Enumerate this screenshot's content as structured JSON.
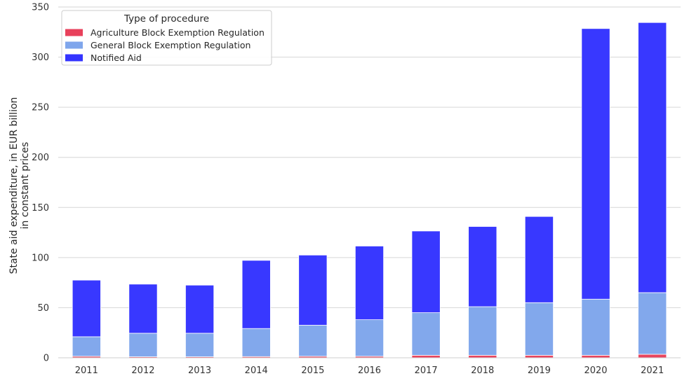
{
  "chart_data": {
    "type": "bar",
    "stacked": true,
    "categories": [
      "2011",
      "2012",
      "2013",
      "2014",
      "2015",
      "2016",
      "2017",
      "2018",
      "2019",
      "2020",
      "2021"
    ],
    "series": [
      {
        "name": "Agriculture Block Exemption Regulation",
        "color": "#e8415b",
        "values": [
          1.5,
          1.0,
          1.0,
          1.2,
          1.5,
          1.5,
          2.5,
          2.5,
          2.5,
          2.5,
          3.5
        ]
      },
      {
        "name": "General Block Exemption Regulation",
        "color": "#7fa6ec",
        "values": [
          19.5,
          23.5,
          23.5,
          28.0,
          31.0,
          36.5,
          42.5,
          48.5,
          52.5,
          56.0,
          61.5
        ]
      },
      {
        "name": "Notified Aid",
        "color": "#3434ff",
        "values": [
          56.5,
          49.0,
          48.0,
          68.0,
          70.0,
          73.5,
          81.5,
          80.0,
          86.0,
          270.0,
          269.5
        ]
      }
    ],
    "ylabel_lines": [
      "State aid expenditure, in EUR billion",
      "in constant prices"
    ],
    "xlabel": "",
    "ylim": [
      0,
      350
    ],
    "yticks": [
      "0",
      "50",
      "100",
      "150",
      "200",
      "250",
      "300",
      "350"
    ],
    "grid": "horizontal",
    "legend": {
      "title": "Type of procedure",
      "placement": "top-left"
    }
  }
}
